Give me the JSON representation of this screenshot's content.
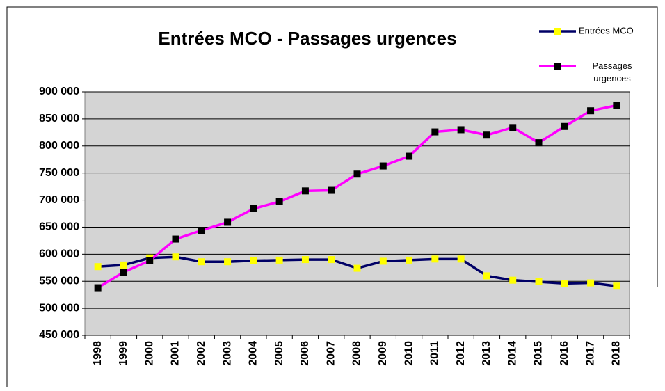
{
  "chart_data": {
    "type": "line",
    "title": "Entrées MCO - Passages urgences",
    "categories": [
      "1998",
      "1999",
      "2000",
      "2001",
      "2002",
      "2003",
      "2004",
      "2005",
      "2006",
      "2007",
      "2008",
      "2009",
      "2010",
      "2011",
      "2012",
      "2013",
      "2014",
      "2015",
      "2016",
      "2017",
      "2018"
    ],
    "series": [
      {
        "name": "Entrées MCO",
        "color": "#000066",
        "marker_color": "#ffff00",
        "values": [
          577000,
          580000,
          593000,
          595000,
          586000,
          586000,
          588000,
          589000,
          590000,
          590000,
          574000,
          587000,
          589000,
          591000,
          591000,
          560000,
          552000,
          549000,
          546000,
          547000,
          541000
        ]
      },
      {
        "name": "Passages urgences",
        "color": "#ff00ff",
        "marker_color": "#000000",
        "values": [
          538000,
          567000,
          588000,
          628000,
          644000,
          659000,
          684000,
          697000,
          717000,
          718000,
          748000,
          763000,
          781000,
          826000,
          830000,
          820000,
          834000,
          806000,
          836000,
          865000,
          875000
        ]
      }
    ],
    "ylim": [
      450000,
      900000
    ],
    "yticks": [
      {
        "value": 450000,
        "label": "450 000"
      },
      {
        "value": 500000,
        "label": "500 000"
      },
      {
        "value": 550000,
        "label": "550 000"
      },
      {
        "value": 600000,
        "label": "600 000"
      },
      {
        "value": 650000,
        "label": "650 000"
      },
      {
        "value": 700000,
        "label": "700 000"
      },
      {
        "value": 750000,
        "label": "750 000"
      },
      {
        "value": 800000,
        "label": "800 000"
      },
      {
        "value": 850000,
        "label": "850 000"
      },
      {
        "value": 900000,
        "label": "900 000"
      }
    ],
    "grid": true,
    "plot_background": "#d4d4d4"
  }
}
